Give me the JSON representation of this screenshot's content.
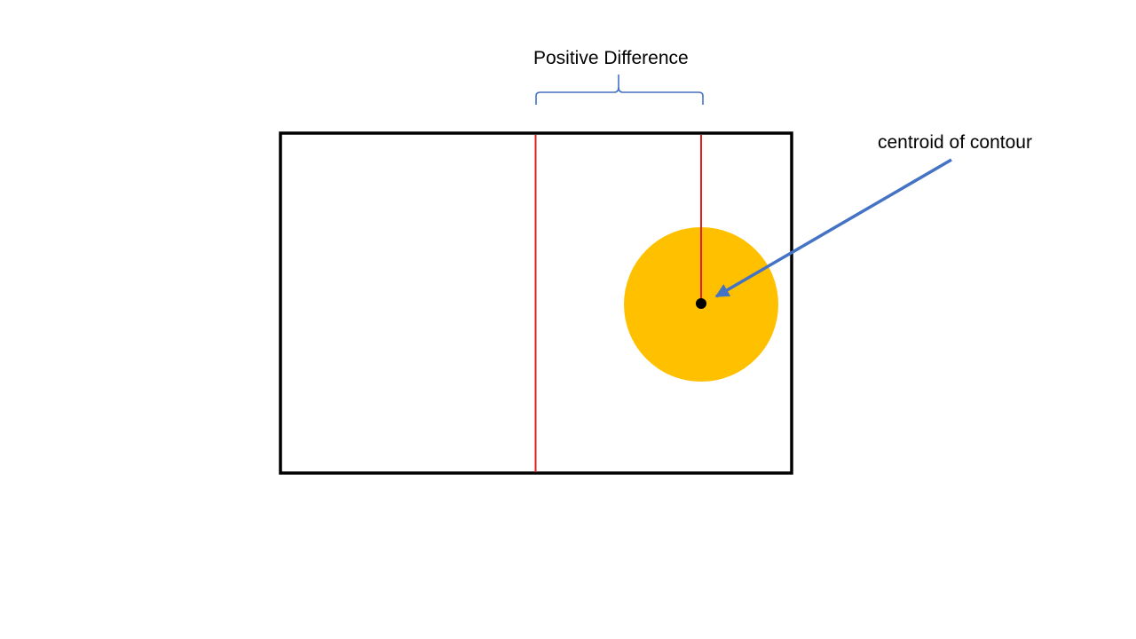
{
  "labels": {
    "positive_difference": "Positive Difference",
    "centroid": "centroid of contour"
  },
  "colors": {
    "frame": "#000000",
    "reference_line": "#e02020",
    "contour_fill": "#ffc000",
    "centroid_dot": "#000000",
    "arrow": "#4472c4",
    "brace": "#4472c4"
  }
}
